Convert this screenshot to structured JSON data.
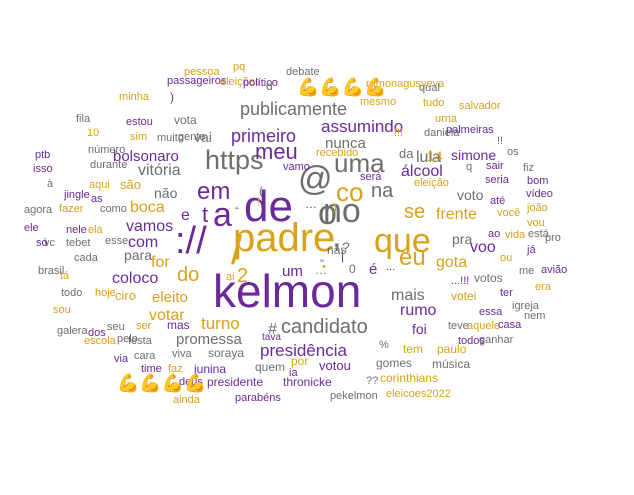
{
  "palette": {
    "purple": "#6a2a9a",
    "gold": "#d8a21a",
    "gray": "#6e6e6e"
  },
  "icon_names": {
    "flexed_biceps": "flexed-biceps-icon"
  },
  "words": [
    {
      "t": "padre",
      "c": "gold"
    },
    {
      "t": "kelmon",
      "c": "purple"
    },
    {
      "t": "de",
      "c": "purple"
    },
    {
      "t": "no",
      "c": "gray"
    },
    {
      "t": "que",
      "c": "gold"
    },
    {
      "t": "o",
      "c": "gray"
    },
    {
      "t": "a",
      "c": "purple"
    },
    {
      "t": "co",
      "c": "gold"
    },
    {
      "t": "e",
      "c": "purple"
    },
    {
      "t": "em",
      "c": "purple"
    },
    {
      "t": "t",
      "c": "purple"
    },
    {
      "t": "@",
      "c": "gray"
    },
    {
      "t": "uma",
      "c": "gray"
    },
    {
      "t": "https",
      "c": "gray"
    },
    {
      "t": "meu",
      "c": "purple"
    },
    {
      "t": "://",
      "c": "purple"
    },
    {
      "t": "/",
      "c": "gold"
    },
    {
      "t": "’",
      "c": "gray"
    },
    {
      "t": "eu",
      "c": "gold"
    },
    {
      "t": "na",
      "c": "gray"
    },
    {
      "t": "se",
      "c": "gold"
    },
    {
      "t": "candidato",
      "c": "gray"
    },
    {
      "t": "primeiro",
      "c": "purple"
    },
    {
      "t": "publicamente",
      "c": "gray"
    },
    {
      "t": "assumindo",
      "c": "purple"
    },
    {
      "t": "nunca",
      "c": "gray"
    },
    {
      "t": "vitória",
      "c": "gray"
    },
    {
      "t": "bolsonaro",
      "c": "purple"
    },
    {
      "t": "boca",
      "c": "gold"
    },
    {
      "t": "vamos",
      "c": "purple"
    },
    {
      "t": "com",
      "c": "purple"
    },
    {
      "t": "do",
      "c": "gold"
    },
    {
      "t": "for",
      "c": "gold"
    },
    {
      "t": "coloco",
      "c": "purple"
    },
    {
      "t": "eleito",
      "c": "gold"
    },
    {
      "t": "ciro",
      "c": "gold"
    },
    {
      "t": "turno",
      "c": "gold"
    },
    {
      "t": "promessa",
      "c": "gray"
    },
    {
      "t": "presidência",
      "c": "purple"
    },
    {
      "t": "votar",
      "c": "gold"
    },
    {
      "t": "mais",
      "c": "gray"
    },
    {
      "t": "rumo",
      "c": "purple"
    },
    {
      "t": "álcool",
      "c": "purple"
    },
    {
      "t": "lula",
      "c": "gray"
    },
    {
      "t": "frente",
      "c": "gold"
    },
    {
      "t": "gota",
      "c": "gold"
    },
    {
      "t": "pra",
      "c": "gray"
    },
    {
      "t": "voo",
      "c": "purple"
    },
    {
      "t": "foi",
      "c": "purple"
    },
    {
      "t": "é",
      "c": "purple"
    },
    {
      "t": "um",
      "c": "purple"
    },
    {
      "t": "2",
      "c": "gold"
    },
    {
      "t": "não",
      "c": "gray"
    },
    {
      "t": "para",
      "c": "gray"
    },
    {
      "t": "vai",
      "c": "gray"
    },
    {
      "t": "são",
      "c": "gold"
    },
    {
      "t": "da",
      "c": "gray"
    },
    {
      "t": "14",
      "c": "gold"
    },
    {
      "t": "simone",
      "c": "purple"
    },
    {
      "t": "voto",
      "c": "gray"
    },
    {
      "t": "q",
      "c": "gray"
    },
    {
      "t": "votos",
      "c": "gray"
    },
    {
      "t": "votei",
      "c": "gold"
    },
    {
      "t": "...!!!",
      "c": "purple"
    },
    {
      "t": "mas",
      "c": "purple"
    },
    {
      "t": "soraya",
      "c": "gray"
    },
    {
      "t": "tava",
      "c": "purple"
    },
    {
      "t": "quem",
      "c": "gray"
    },
    {
      "t": "votou",
      "c": "purple"
    },
    {
      "t": "por",
      "c": "gold"
    },
    {
      "t": "gomes",
      "c": "gray"
    },
    {
      "t": "música",
      "c": "gray"
    },
    {
      "t": "tem",
      "c": "gold"
    },
    {
      "t": "paulo",
      "c": "gold"
    },
    {
      "t": "%",
      "c": "gray"
    },
    {
      "t": "#",
      "c": "gray"
    },
    {
      "t": "presidente",
      "c": "purple"
    },
    {
      "t": "thronicke",
      "c": "purple"
    },
    {
      "t": "??",
      "c": "gray"
    },
    {
      "t": "corinthians",
      "c": "gold"
    },
    {
      "t": "deus",
      "c": "purple"
    },
    {
      "t": "junina",
      "c": "purple"
    },
    {
      "t": "viva",
      "c": "gray"
    },
    {
      "t": "time",
      "c": "purple"
    },
    {
      "t": "faz",
      "c": "gold"
    },
    {
      "t": "festa",
      "c": "gray"
    },
    {
      "t": "pelo",
      "c": "gray"
    },
    {
      "t": "seu",
      "c": "gray"
    },
    {
      "t": "ser",
      "c": "gold"
    },
    {
      "t": "cara",
      "c": "gray"
    },
    {
      "t": "via",
      "c": "purple"
    },
    {
      "t": "escola",
      "c": "gold"
    },
    {
      "t": "dos",
      "c": "purple"
    },
    {
      "t": "galera",
      "c": "gray"
    },
    {
      "t": "sou",
      "c": "gold"
    },
    {
      "t": "todo",
      "c": "gray"
    },
    {
      "t": "hoje",
      "c": "gold"
    },
    {
      "t": "tá",
      "c": "gold"
    },
    {
      "t": "brasil",
      "c": "gray"
    },
    {
      "t": "cada",
      "c": "gray"
    },
    {
      "t": "tebet",
      "c": "gray"
    },
    {
      "t": "vc",
      "c": "gray"
    },
    {
      "t": "esse",
      "c": "gray"
    },
    {
      "t": "só",
      "c": "purple"
    },
    {
      "t": "nele",
      "c": "purple"
    },
    {
      "t": "ela",
      "c": "gold"
    },
    {
      "t": "ele",
      "c": "purple"
    },
    {
      "t": "agora",
      "c": "gray"
    },
    {
      "t": "fazer",
      "c": "gold"
    },
    {
      "t": "como",
      "c": "gray"
    },
    {
      "t": "à",
      "c": "gray"
    },
    {
      "t": "jingle",
      "c": "purple"
    },
    {
      "t": "as",
      "c": "purple"
    },
    {
      "t": "aqui",
      "c": "gold"
    },
    {
      "t": "isso",
      "c": "purple"
    },
    {
      "t": "durante",
      "c": "gray"
    },
    {
      "t": "ptb",
      "c": "purple"
    },
    {
      "t": "número",
      "c": "gray"
    },
    {
      "t": "10",
      "c": "gold"
    },
    {
      "t": "fila",
      "c": "gray"
    },
    {
      "t": "estou",
      "c": "purple"
    },
    {
      "t": "sim",
      "c": "gold"
    },
    {
      "t": "muito",
      "c": "gray"
    },
    {
      "t": "gente",
      "c": "gray"
    },
    {
      "t": "vota",
      "c": "gray"
    },
    {
      "t": ")",
      "c": "purple"
    },
    {
      "t": "minha",
      "c": "gold"
    },
    {
      "t": "passageiros",
      "c": "purple"
    },
    {
      "t": "eleições",
      "c": "gold"
    },
    {
      "t": "pessoa",
      "c": "gold"
    },
    {
      "t": "pq",
      "c": "gold"
    },
    {
      "t": "debate",
      "c": "gray"
    },
    {
      "t": "político",
      "c": "purple"
    },
    {
      "t": "ramonagusyeva",
      "c": "gold"
    },
    {
      "t": "qual",
      "c": "gray"
    },
    {
      "t": "mesmo",
      "c": "gold"
    },
    {
      "t": "tudo",
      "c": "gold"
    },
    {
      "t": "salvador",
      "c": "gold"
    },
    {
      "t": "urna",
      "c": "gold"
    },
    {
      "t": "daniela",
      "c": "gray"
    },
    {
      "t": "palmeiras",
      "c": "purple"
    },
    {
      "t": "!!!",
      "c": "gold"
    },
    {
      "t": "recebido",
      "c": "gold"
    },
    {
      "t": "!!",
      "c": "gray"
    },
    {
      "t": "os",
      "c": "gray"
    },
    {
      "t": "sair",
      "c": "purple"
    },
    {
      "t": "fiz",
      "c": "gray"
    },
    {
      "t": "seria",
      "c": "purple"
    },
    {
      "t": "bom",
      "c": "purple"
    },
    {
      "t": "vídeo",
      "c": "purple"
    },
    {
      "t": "até",
      "c": "purple"
    },
    {
      "t": "você",
      "c": "gold"
    },
    {
      "t": "joão",
      "c": "gold"
    },
    {
      "t": "vou",
      "c": "gold"
    },
    {
      "t": "está",
      "c": "gray"
    },
    {
      "t": "pro",
      "c": "gray"
    },
    {
      "t": "ao",
      "c": "purple"
    },
    {
      "t": "vida",
      "c": "gold"
    },
    {
      "t": "já",
      "c": "purple"
    },
    {
      "t": "ou",
      "c": "gold"
    },
    {
      "t": "avião",
      "c": "purple"
    },
    {
      "t": "me",
      "c": "gray"
    },
    {
      "t": "era",
      "c": "gold"
    },
    {
      "t": "ter",
      "c": "purple"
    },
    {
      "t": "igreja",
      "c": "gray"
    },
    {
      "t": "nem",
      "c": "gray"
    },
    {
      "t": "essa",
      "c": "purple"
    },
    {
      "t": "aquele",
      "c": "gold"
    },
    {
      "t": "casa",
      "c": "purple"
    },
    {
      "t": "teve",
      "c": "gray"
    },
    {
      "t": "ganhar",
      "c": "gray"
    },
    {
      "t": "todos",
      "c": "purple"
    },
    {
      "t": "ia",
      "c": "purple"
    },
    {
      "t": "ainda",
      "c": "gold"
    },
    {
      "t": "parabéns",
      "c": "purple"
    },
    {
      "t": "pekelmon",
      "c": "gray"
    },
    {
      "t": "eleicoes2022",
      "c": "gold"
    },
    {
      "t": "eleição",
      "c": "gold"
    },
    {
      "t": "será",
      "c": "purple"
    },
    {
      "t": "vamo",
      "c": "purple"
    },
    {
      "t": "ai",
      "c": "gold"
    },
    {
      "t": "nas",
      "c": "gray"
    },
    {
      "t": "?",
      "c": "gray"
    },
    {
      "t": "!",
      "c": "gold"
    },
    {
      "t": "“",
      "c": "gray"
    },
    {
      "t": "(",
      "c": "gray"
    },
    {
      "t": "d",
      "c": "gray"
    },
    {
      "t": "…",
      "c": "gray"
    },
    {
      "t": "•",
      "c": "gold"
    },
    {
      "t": "1",
      "c": "gold"
    },
    {
      "t": "”",
      "c": "gray"
    },
    {
      "t": "...",
      "c": "purple"
    },
    {
      "t": "0",
      "c": "gray"
    },
    {
      "t": "…",
      "c": "purple"
    },
    {
      "t": "|",
      "c": "purple"
    },
    {
      "t": "’",
      "c": "gold"
    }
  ],
  "emoji_groups": [
    {
      "icon": "flexed-biceps-icon",
      "text": "💪💪💪💪"
    },
    {
      "icon": "flexed-biceps-icon",
      "text": "💪💪💪💪"
    }
  ]
}
